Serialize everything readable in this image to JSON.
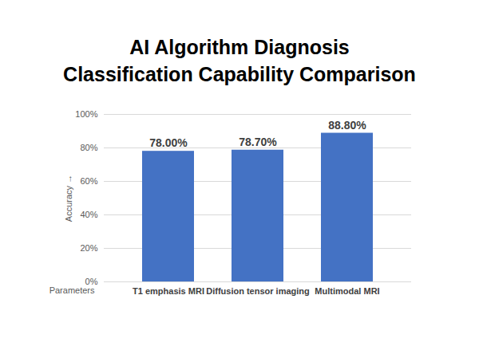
{
  "chart_data": {
    "type": "bar",
    "title": [
      "AI Algorithm Diagnosis",
      "Classification Capability Comparison"
    ],
    "x_label": "Parameters",
    "y_label": "Accuracy",
    "categories": [
      "T1 emphasis MRI",
      "Diffusion tensor imaging",
      "Multimodal MRI"
    ],
    "values": [
      78.0,
      78.7,
      88.8
    ],
    "value_labels": [
      "78.00%",
      "78.70%",
      "88.80%"
    ],
    "data_labels": true,
    "color": "#4472c4",
    "ylim": [
      0,
      100
    ],
    "yticks": [
      {
        "value": 0,
        "label": "0%"
      },
      {
        "value": 20,
        "label": "20%"
      },
      {
        "value": 40,
        "label": "40%"
      },
      {
        "value": 60,
        "label": "60%"
      },
      {
        "value": 80,
        "label": "80%"
      },
      {
        "value": 100,
        "label": "100%"
      }
    ],
    "grid": true
  }
}
